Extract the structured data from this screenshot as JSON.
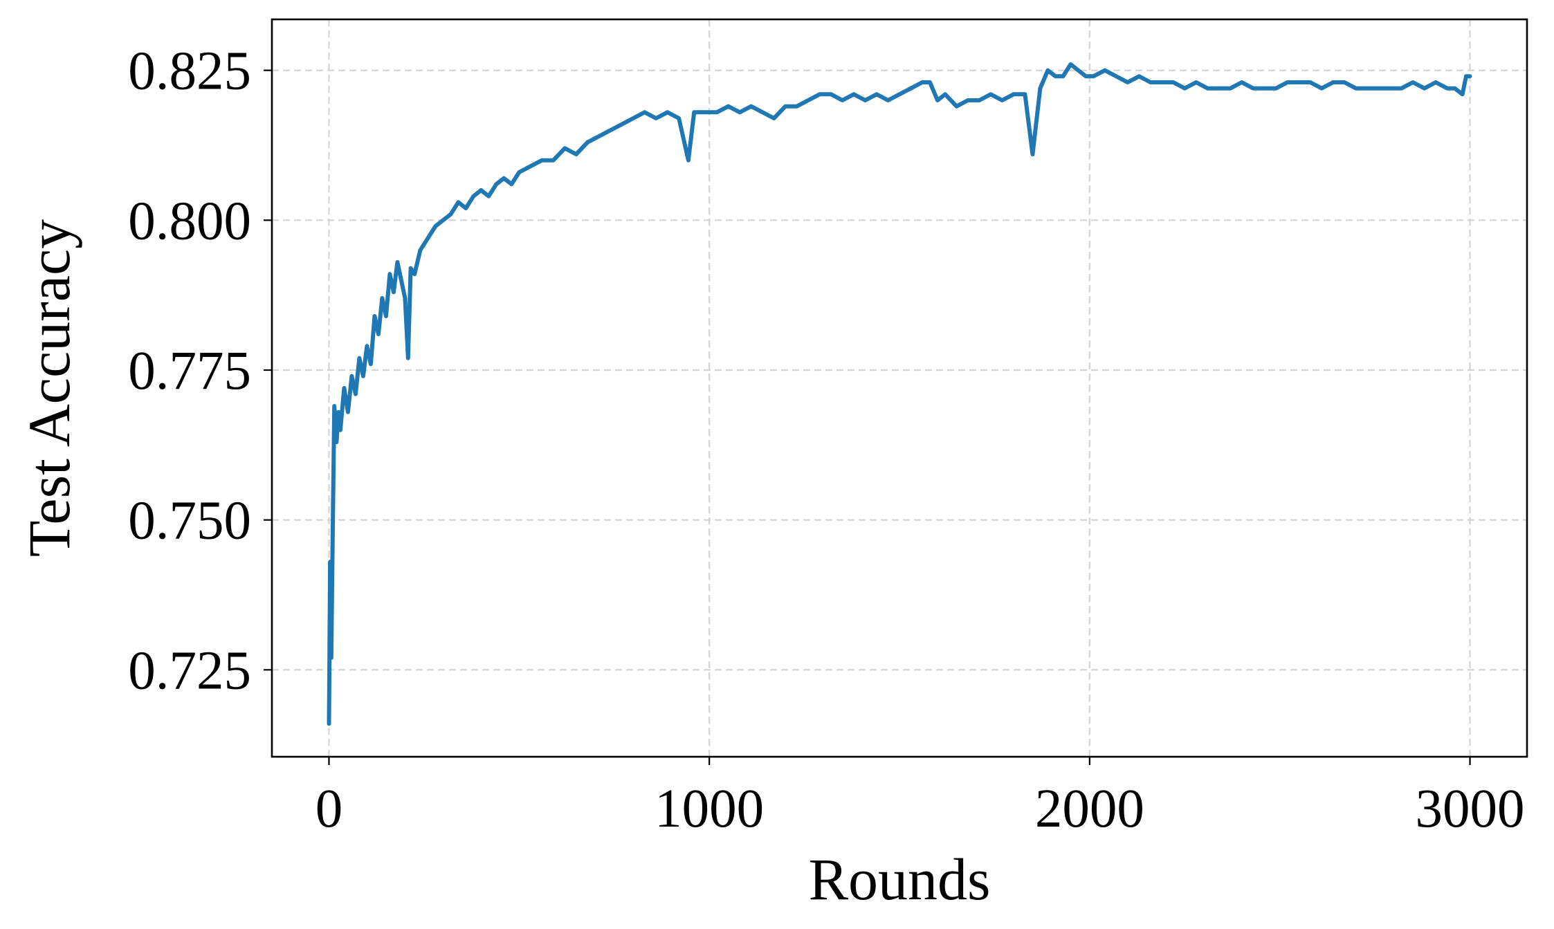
{
  "chart_data": {
    "type": "line",
    "title": "",
    "xlabel": "Rounds",
    "ylabel": "Test Accuracy",
    "xlim": [
      -150,
      3150
    ],
    "ylim": [
      0.7105,
      0.8335
    ],
    "xticks": [
      0,
      1000,
      2000,
      3000
    ],
    "xtick_labels": [
      "0",
      "1000",
      "2000",
      "3000"
    ],
    "yticks": [
      0.725,
      0.75,
      0.775,
      0.8,
      0.825
    ],
    "ytick_labels": [
      "0.725",
      "0.750",
      "0.775",
      "0.800",
      "0.825"
    ],
    "grid": true,
    "legend": "none",
    "line_color": "#1f77b4",
    "series": [
      {
        "x": [
          0,
          3,
          6,
          10,
          14,
          20,
          25,
          30,
          40,
          50,
          60,
          70,
          80,
          90,
          100,
          110,
          120,
          130,
          140,
          150,
          160,
          170,
          180,
          190,
          200,
          208,
          215,
          225,
          240,
          260,
          280,
          300,
          320,
          340,
          360,
          380,
          400,
          420,
          440,
          460,
          480,
          500,
          530,
          560,
          590,
          620,
          650,
          680,
          710,
          740,
          770,
          800,
          830,
          860,
          890,
          920,
          945,
          960,
          990,
          1020,
          1050,
          1080,
          1110,
          1140,
          1170,
          1200,
          1230,
          1260,
          1290,
          1320,
          1350,
          1380,
          1410,
          1440,
          1470,
          1500,
          1530,
          1560,
          1580,
          1600,
          1620,
          1650,
          1680,
          1710,
          1740,
          1770,
          1800,
          1830,
          1850,
          1870,
          1890,
          1910,
          1930,
          1950,
          1970,
          1990,
          2010,
          2040,
          2070,
          2100,
          2130,
          2160,
          2190,
          2220,
          2250,
          2280,
          2310,
          2340,
          2370,
          2400,
          2430,
          2460,
          2490,
          2520,
          2550,
          2580,
          2610,
          2640,
          2670,
          2700,
          2730,
          2760,
          2790,
          2820,
          2850,
          2880,
          2910,
          2940,
          2960,
          2980,
          2990,
          3000
        ],
        "y": [
          0.716,
          0.743,
          0.727,
          0.749,
          0.769,
          0.763,
          0.768,
          0.765,
          0.772,
          0.768,
          0.774,
          0.771,
          0.777,
          0.774,
          0.779,
          0.776,
          0.784,
          0.781,
          0.787,
          0.784,
          0.791,
          0.788,
          0.793,
          0.79,
          0.787,
          0.777,
          0.792,
          0.791,
          0.795,
          0.797,
          0.799,
          0.8,
          0.801,
          0.803,
          0.802,
          0.804,
          0.805,
          0.804,
          0.806,
          0.807,
          0.806,
          0.808,
          0.809,
          0.81,
          0.81,
          0.812,
          0.811,
          0.813,
          0.814,
          0.815,
          0.816,
          0.817,
          0.818,
          0.817,
          0.818,
          0.817,
          0.81,
          0.818,
          0.818,
          0.818,
          0.819,
          0.818,
          0.819,
          0.818,
          0.817,
          0.819,
          0.819,
          0.82,
          0.821,
          0.821,
          0.82,
          0.821,
          0.82,
          0.821,
          0.82,
          0.821,
          0.822,
          0.823,
          0.823,
          0.82,
          0.821,
          0.819,
          0.82,
          0.82,
          0.821,
          0.82,
          0.821,
          0.821,
          0.811,
          0.822,
          0.825,
          0.824,
          0.824,
          0.826,
          0.825,
          0.824,
          0.824,
          0.825,
          0.824,
          0.823,
          0.824,
          0.823,
          0.823,
          0.823,
          0.822,
          0.823,
          0.822,
          0.822,
          0.822,
          0.823,
          0.822,
          0.822,
          0.822,
          0.823,
          0.823,
          0.823,
          0.822,
          0.823,
          0.823,
          0.822,
          0.822,
          0.822,
          0.822,
          0.822,
          0.823,
          0.822,
          0.823,
          0.822,
          0.822,
          0.821,
          0.824,
          0.824
        ]
      }
    ]
  }
}
